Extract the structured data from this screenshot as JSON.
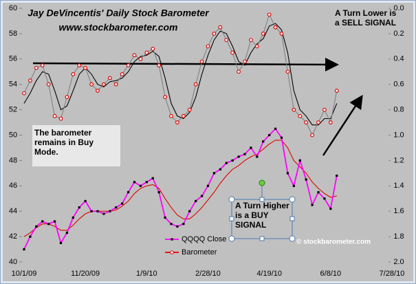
{
  "chart_data": {
    "type": "line",
    "title": "Jay DeVincentis' Daily Stock Barometer",
    "subtitle": "www.stockbarometer.com",
    "annotations": [
      {
        "text": "A Turn Lower is a SELL SIGNAL"
      },
      {
        "text": "The barometer remains in Buy Mode."
      },
      {
        "text": "A Turn Higher is a BUY SIGNAL"
      },
      {
        "text": "© stockbarometer.com"
      }
    ],
    "categories": [
      "10/1/09",
      null,
      null,
      null,
      null,
      null,
      null,
      null,
      null,
      null,
      "11/20/09",
      null,
      null,
      null,
      null,
      null,
      null,
      null,
      null,
      null,
      "1/9/10",
      null,
      null,
      null,
      null,
      null,
      null,
      null,
      null,
      null,
      "2/28/10",
      null,
      null,
      null,
      null,
      null,
      null,
      null,
      null,
      null,
      "4/19/10",
      null,
      null,
      null,
      null,
      null,
      null,
      null,
      null,
      null,
      "6/8/10",
      null,
      null,
      null,
      null,
      null,
      null,
      null,
      null,
      null,
      "7/28/10"
    ],
    "ylim": [
      40,
      60
    ],
    "yticks": [
      40,
      42,
      44,
      46,
      48,
      50,
      52,
      54,
      56,
      58,
      60
    ],
    "y2lim": [
      2,
      0
    ],
    "y2ticks": [
      {
        "value": 0,
        "label": "0.0"
      },
      0.2,
      0.4,
      0.6,
      0.8,
      {
        "value": 1,
        "label": "1.0"
      },
      1.2,
      1.4,
      1.6,
      1.8,
      {
        "value": 2,
        "label": "2.0"
      }
    ],
    "legend": "bottom",
    "series": [
      {
        "name": "QQQQ Close",
        "color": "#ff00ff",
        "marker": "square",
        "marker_color": "#000000",
        "values": [
          41.0,
          42.0,
          42.8,
          43.2,
          43.0,
          43.2,
          41.5,
          42.3,
          43.5,
          44.3,
          44.8,
          44.0,
          44.0,
          43.8,
          44.0,
          44.3,
          44.6,
          45.5,
          46.3,
          46.0,
          46.3,
          46.6,
          45.5,
          43.5,
          43.0,
          42.8,
          43.0,
          44.0,
          44.8,
          45.2,
          46.0,
          47.0,
          47.3,
          47.8,
          48.0,
          48.3,
          48.5,
          49.0,
          48.3,
          49.5,
          50.0,
          50.5,
          49.8,
          47.0,
          46.0,
          48.0,
          46.5,
          44.5,
          45.5,
          45.0,
          44.2,
          46.8,
          null,
          null,
          null,
          null,
          null,
          null,
          null,
          null,
          null
        ]
      },
      {
        "color": "#e00000",
        "values": [
          42.0,
          42.3,
          42.7,
          43.0,
          43.0,
          42.8,
          42.5,
          42.5,
          42.9,
          43.4,
          43.8,
          44.0,
          44.0,
          44.0,
          44.0,
          44.1,
          44.4,
          44.8,
          45.4,
          45.8,
          46.0,
          46.1,
          45.8,
          45.0,
          44.3,
          43.7,
          43.4,
          43.4,
          43.8,
          44.3,
          44.9,
          45.5,
          46.2,
          46.8,
          47.3,
          47.6,
          48.0,
          48.3,
          48.5,
          48.9,
          49.3,
          49.6,
          49.6,
          49.0,
          48.0,
          47.5,
          47.0,
          46.3,
          45.8,
          45.4,
          45.1,
          45.2,
          null,
          null,
          null,
          null,
          null,
          null,
          null,
          null,
          null
        ]
      },
      {
        "name": "Barometer",
        "color": "#808080",
        "marker": "circle",
        "marker_color": "#e00000",
        "axis": "y2",
        "values": [
          0.67,
          0.57,
          0.47,
          0.45,
          0.6,
          0.85,
          0.87,
          0.7,
          0.52,
          0.45,
          0.47,
          0.6,
          0.65,
          0.6,
          0.55,
          0.6,
          0.52,
          0.45,
          0.37,
          0.4,
          0.35,
          0.32,
          0.45,
          0.7,
          0.85,
          0.9,
          0.85,
          0.8,
          0.6,
          0.42,
          0.3,
          0.2,
          0.15,
          0.25,
          0.35,
          0.5,
          0.42,
          0.25,
          0.3,
          0.2,
          0.05,
          0.15,
          0.2,
          0.5,
          0.8,
          0.85,
          0.9,
          1.0,
          0.9,
          0.8,
          0.9,
          0.65,
          null,
          null,
          null,
          null,
          null,
          null,
          null,
          null,
          null
        ]
      },
      {
        "color": "#000000",
        "axis": "y2",
        "values": [
          0.75,
          0.67,
          0.57,
          0.5,
          0.52,
          0.65,
          0.8,
          0.77,
          0.65,
          0.52,
          0.47,
          0.52,
          0.6,
          0.62,
          0.58,
          0.57,
          0.55,
          0.5,
          0.42,
          0.38,
          0.37,
          0.34,
          0.38,
          0.55,
          0.75,
          0.85,
          0.87,
          0.82,
          0.7,
          0.52,
          0.37,
          0.25,
          0.18,
          0.2,
          0.3,
          0.42,
          0.45,
          0.35,
          0.28,
          0.24,
          0.14,
          0.12,
          0.17,
          0.35,
          0.65,
          0.8,
          0.85,
          0.92,
          0.92,
          0.87,
          0.87,
          0.75,
          null,
          null,
          null,
          null,
          null,
          null,
          null,
          null,
          null
        ]
      }
    ]
  }
}
